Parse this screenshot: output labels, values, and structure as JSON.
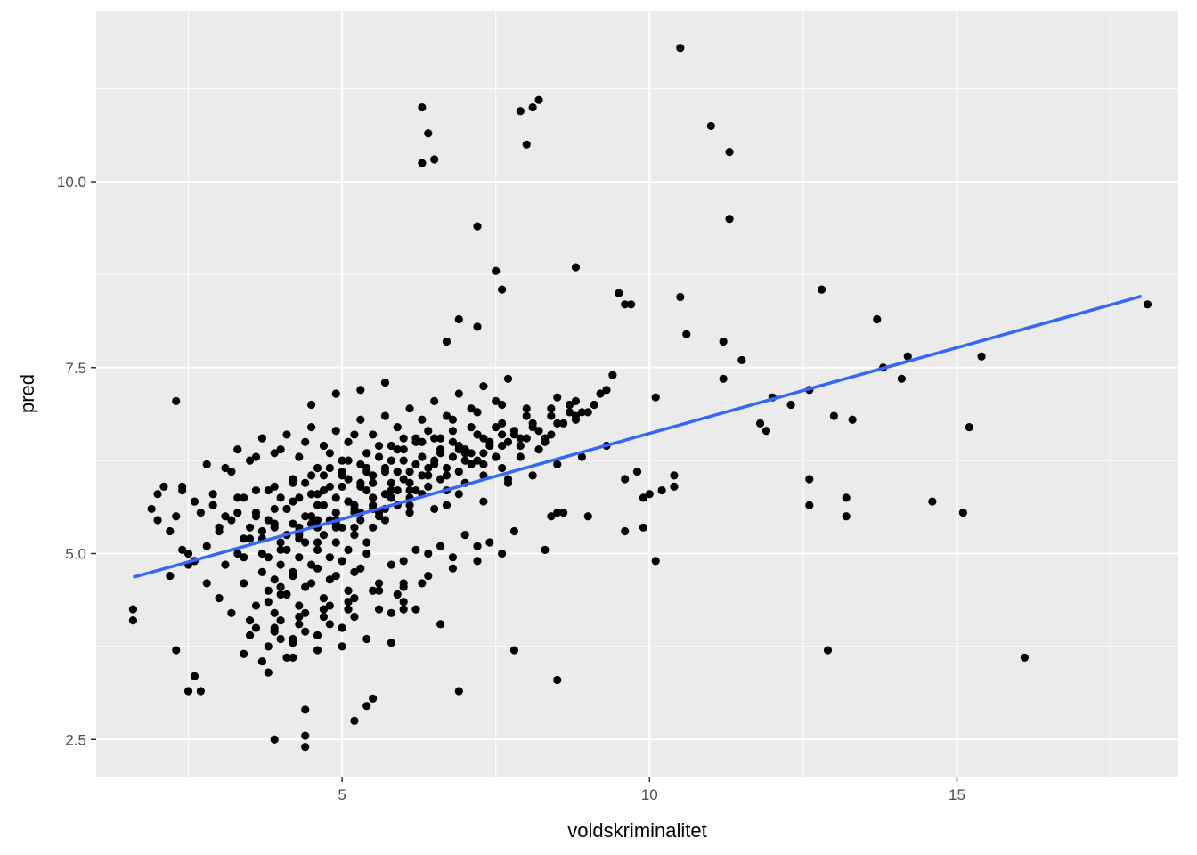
{
  "chart_data": {
    "type": "scatter",
    "title": "",
    "xlabel": "voldskriminalitet",
    "ylabel": "pred",
    "xlim": [
      1.0,
      18.6
    ],
    "ylim": [
      2.0,
      12.3
    ],
    "x_ticks": [
      5,
      10,
      15
    ],
    "x_tick_labels": [
      "5",
      "10",
      "15"
    ],
    "x_minor_ticks": [
      2.5,
      7.5,
      12.5,
      17.5
    ],
    "y_ticks": [
      2.5,
      5.0,
      7.5,
      10.0
    ],
    "y_tick_labels": [
      "2.5",
      "5.0",
      "7.5",
      "10.0"
    ],
    "y_minor_ticks": [
      3.75,
      6.25,
      8.75,
      11.25
    ],
    "grid": true,
    "legend": "none",
    "colors": {
      "panel": "#ebebeb",
      "grid": "#ffffff",
      "points": "#000000",
      "trend": "#3366ff"
    },
    "trend_line": {
      "x": [
        1.6,
        18.0
      ],
      "y": [
        4.68,
        8.46
      ]
    },
    "points": {
      "x": [
        10.5,
        8.2,
        8.1,
        7.9,
        6.3,
        6.4,
        6.5,
        8.0,
        6.3,
        11.0,
        11.3,
        11.3,
        7.2,
        8.8,
        7.5,
        7.6,
        6.9,
        7.2,
        6.7,
        9.5,
        9.6,
        9.7,
        10.5,
        10.6,
        11.2,
        12.8,
        13.7,
        15.4,
        18.1,
        11.2,
        11.5,
        13.8,
        14.1,
        14.2,
        13.0,
        13.3,
        12.0,
        12.3,
        12.6,
        11.8,
        11.9,
        15.2,
        10.1,
        10.4,
        10.4,
        10.2,
        9.9,
        10.0,
        10.1,
        9.9,
        9.6,
        9.0,
        8.6,
        8.3,
        8.4,
        8.5,
        9.4,
        9.3,
        9.1,
        8.9,
        8.7,
        8.5,
        9.8,
        9.6,
        12.6,
        12.6,
        13.2,
        13.2,
        14.6,
        15.1,
        12.9,
        16.1,
        7.8,
        6.9,
        6.6,
        6.2,
        6.0,
        5.8,
        8.5,
        5.2,
        5.4,
        5.5,
        3.8,
        3.9,
        4.4,
        4.4,
        4.4,
        2.5,
        2.7,
        2.6,
        2.3,
        2.3,
        1.6,
        1.6,
        1.9,
        2.0,
        2.2,
        2.4,
        2.5,
        2.6,
        2.8,
        3.0,
        3.2,
        3.3,
        3.4,
        3.5,
        3.6,
        3.7,
        3.8,
        3.9,
        4.0,
        4.1,
        4.2,
        4.3,
        4.4,
        4.5,
        4.6,
        4.7,
        4.8,
        4.9,
        5.0,
        5.1,
        5.2,
        5.3,
        5.4,
        5.5,
        5.6,
        5.7,
        5.8,
        5.9,
        6.0,
        6.1,
        6.2,
        6.3,
        6.4,
        6.5,
        6.6,
        6.7,
        6.8,
        6.9,
        7.0,
        7.1,
        7.2,
        7.3,
        7.4,
        7.5,
        7.6,
        7.7,
        7.8,
        7.9,
        8.0,
        8.1,
        8.2,
        8.3,
        8.4,
        8.6,
        8.8,
        9.0,
        2.1,
        2.4,
        2.6,
        2.9,
        3.1,
        3.3,
        3.5,
        3.7,
        3.9,
        4.1,
        4.3,
        4.5,
        4.7,
        4.9,
        5.1,
        5.3,
        5.5,
        5.7,
        5.9,
        6.1,
        6.3,
        6.5,
        6.7,
        6.9,
        7.1,
        7.3,
        7.5,
        7.7,
        7.9,
        8.1,
        8.3,
        2.2,
        2.5,
        2.8,
        3.1,
        3.4,
        3.7,
        4.0,
        4.3,
        4.6,
        4.9,
        5.2,
        5.5,
        5.8,
        6.1,
        6.4,
        6.7,
        7.0,
        7.3,
        7.6,
        2.3,
        2.7,
        3.0,
        3.3,
        3.6,
        3.9,
        4.2,
        4.5,
        4.8,
        5.1,
        5.4,
        5.7,
        6.0,
        6.3,
        6.6,
        6.9,
        7.2,
        7.5,
        7.8,
        8.1,
        8.4,
        8.7,
        2.0,
        2.4,
        2.8,
        3.2,
        3.6,
        4.0,
        4.4,
        4.8,
        5.2,
        5.6,
        6.0,
        6.4,
        6.8,
        7.2,
        7.6,
        8.0,
        3.0,
        3.4,
        3.8,
        4.2,
        4.6,
        5.0,
        5.4,
        5.8,
        6.2,
        6.6,
        7.0,
        7.4,
        7.8,
        3.2,
        3.6,
        4.0,
        4.4,
        4.8,
        5.2,
        5.6,
        6.0,
        6.4,
        6.8,
        7.2,
        3.5,
        3.9,
        4.3,
        4.7,
        5.1,
        5.5,
        5.9,
        6.3,
        4.0,
        4.4,
        4.8,
        5.2,
        5.6,
        6.0,
        4.2,
        4.6,
        5.0,
        5.4,
        5.8,
        3.3,
        3.7,
        4.1,
        4.5,
        4.9,
        5.3,
        5.7,
        6.1,
        6.5,
        6.9,
        7.3,
        7.7,
        3.1,
        3.5,
        3.9,
        4.3,
        4.7,
        5.1,
        5.5,
        5.9,
        6.3,
        6.7,
        7.1,
        7.5,
        2.9,
        3.4,
        3.8,
        4.2,
        4.6,
        5.0,
        5.4,
        5.8,
        6.2,
        6.6,
        7.0,
        7.4,
        4.5,
        4.9,
        5.3,
        5.7,
        4.1,
        4.5,
        4.9,
        5.3,
        5.7,
        6.1,
        6.5,
        6.9,
        7.3,
        7.7,
        8.1,
        8.5,
        8.9,
        9.3,
        6.8,
        7.2,
        7.6,
        8.0,
        8.4,
        8.8,
        9.2,
        5.6,
        6.0,
        6.4,
        6.8,
        7.2,
        7.6,
        3.6,
        3.9,
        4.2,
        4.5,
        4.8,
        5.1,
        5.4,
        5.7,
        6.0,
        6.3,
        6.6,
        4.0,
        4.3,
        4.6,
        4.9,
        5.2,
        5.5,
        5.8,
        6.1,
        3.8,
        4.1,
        4.4,
        4.7,
        5.0,
        5.3,
        5.6,
        5.9,
        3.7,
        4.0,
        4.3,
        4.6,
        4.9,
        5.2,
        5.5,
        3.9,
        4.2,
        4.5,
        4.8,
        5.1,
        5.4,
        4.6,
        5.0,
        5.4,
        5.8,
        6.2,
        4.4,
        4.7,
        5.0,
        5.3,
        5.6,
        5.9,
        6.2,
        6.5,
        6.8,
        7.1,
        4.3,
        4.6,
        4.9,
        5.2,
        5.5,
        5.8,
        6.1,
        6.4,
        6.7,
        7.0,
        7.3,
        7.6,
        7.9,
        8.2,
        8.5,
        8.8,
        4.0,
        3.8,
        4.1,
        4.5,
        4.9,
        5.3,
        3.5,
        3.9,
        4.3,
        4.7,
        5.1,
        3.6,
        4.0,
        4.4,
        4.8,
        5.2,
        5.6,
        6.0,
        3.9,
        4.3,
        4.7,
        5.1,
        4.2,
        4.6,
        5.0,
        3.4,
        3.8,
        4.2,
        3.7,
        4.1
      ],
      "y": [
        11.8,
        11.1,
        11.0,
        10.95,
        11.0,
        10.65,
        10.3,
        10.5,
        10.25,
        10.75,
        10.4,
        9.5,
        9.4,
        8.85,
        8.8,
        8.55,
        8.15,
        8.05,
        7.85,
        8.5,
        8.35,
        8.35,
        8.45,
        7.95,
        7.85,
        8.55,
        8.15,
        7.65,
        8.35,
        7.35,
        7.6,
        7.5,
        7.35,
        7.65,
        6.85,
        6.8,
        7.1,
        7.0,
        7.2,
        6.75,
        6.65,
        6.7,
        7.1,
        6.05,
        5.9,
        5.85,
        5.75,
        5.8,
        4.9,
        5.35,
        5.3,
        5.5,
        5.55,
        5.05,
        5.5,
        5.55,
        7.4,
        7.2,
        7.0,
        6.9,
        7.0,
        7.1,
        6.1,
        6.0,
        6.0,
        5.65,
        5.75,
        5.5,
        5.7,
        5.55,
        3.7,
        3.6,
        3.7,
        3.15,
        4.05,
        4.25,
        4.25,
        4.2,
        3.3,
        2.75,
        2.95,
        3.05,
        3.4,
        2.5,
        2.9,
        2.55,
        2.4,
        3.15,
        3.15,
        3.35,
        3.7,
        7.05,
        4.25,
        4.1,
        5.6,
        5.45,
        5.3,
        5.05,
        4.85,
        4.9,
        5.1,
        5.3,
        5.45,
        5.0,
        5.2,
        5.35,
        5.55,
        5.0,
        5.45,
        5.35,
        5.75,
        5.6,
        5.4,
        5.75,
        5.5,
        5.8,
        5.65,
        5.85,
        5.45,
        5.75,
        5.9,
        5.7,
        5.6,
        5.95,
        5.85,
        6.05,
        5.5,
        5.8,
        5.95,
        6.1,
        6.0,
        5.75,
        5.85,
        6.05,
        6.15,
        6.2,
        6.0,
        5.85,
        6.3,
        6.4,
        6.35,
        6.2,
        6.25,
        6.55,
        6.45,
        6.3,
        6.6,
        6.5,
        6.6,
        6.45,
        6.55,
        6.7,
        6.4,
        6.5,
        6.6,
        6.75,
        6.8,
        6.9,
        5.9,
        5.85,
        5.7,
        5.8,
        5.5,
        5.55,
        5.2,
        5.3,
        5.4,
        5.6,
        5.2,
        5.5,
        5.65,
        5.4,
        5.7,
        5.9,
        5.95,
        5.6,
        5.85,
        6.1,
        5.8,
        6.25,
        6.05,
        6.1,
        6.35,
        6.2,
        6.3,
        6.0,
        6.3,
        6.05,
        6.55,
        4.7,
        5.0,
        4.6,
        4.85,
        4.95,
        5.2,
        5.05,
        5.3,
        5.15,
        5.45,
        5.35,
        5.6,
        5.75,
        5.55,
        5.9,
        5.65,
        5.95,
        6.05,
        6.15,
        5.5,
        5.55,
        5.35,
        5.75,
        5.85,
        5.9,
        6.0,
        6.05,
        6.15,
        6.25,
        6.35,
        6.1,
        6.4,
        6.5,
        6.55,
        6.45,
        6.6,
        6.7,
        6.65,
        6.75,
        6.85,
        6.9,
        5.8,
        5.9,
        6.2,
        6.1,
        6.3,
        6.4,
        6.5,
        6.35,
        6.6,
        6.45,
        6.55,
        6.65,
        6.8,
        6.9,
        7.0,
        6.95,
        4.4,
        4.6,
        4.5,
        4.7,
        4.8,
        4.9,
        5.0,
        4.85,
        5.05,
        5.1,
        5.25,
        5.15,
        5.3,
        4.2,
        4.3,
        4.45,
        4.55,
        4.65,
        4.75,
        4.6,
        4.9,
        5.0,
        4.95,
        5.1,
        3.9,
        4.0,
        4.15,
        4.25,
        4.35,
        4.5,
        4.45,
        4.6,
        3.85,
        3.95,
        4.05,
        4.15,
        4.25,
        4.35,
        3.6,
        3.7,
        3.75,
        3.85,
        3.8,
        6.4,
        6.55,
        6.6,
        6.7,
        6.65,
        6.8,
        6.85,
        6.95,
        7.05,
        7.15,
        7.25,
        7.35,
        6.15,
        6.25,
        6.35,
        6.3,
        6.45,
        6.5,
        6.6,
        6.7,
        6.8,
        6.85,
        6.95,
        7.05,
        5.65,
        5.75,
        5.85,
        5.95,
        5.8,
        6.05,
        6.15,
        6.25,
        6.2,
        6.35,
        6.4,
        6.5,
        7.0,
        7.15,
        7.2,
        7.3,
        5.25,
        5.4,
        5.35,
        5.55,
        5.45,
        5.65,
        5.6,
        5.8,
        5.7,
        5.95,
        6.05,
        6.2,
        6.3,
        6.45,
        6.5,
        6.6,
        6.75,
        6.85,
        6.95,
        7.05,
        7.15,
        4.5,
        4.55,
        4.7,
        4.8,
        4.9,
        5.0,
        5.5,
        5.6,
        5.7,
        5.8,
        5.9,
        6.0,
        6.1,
        6.15,
        6.25,
        6.3,
        6.4,
        5.15,
        5.25,
        5.35,
        5.45,
        5.55,
        5.65,
        5.75,
        5.85,
        4.95,
        5.05,
        5.15,
        5.25,
        5.35,
        5.45,
        5.55,
        5.65,
        4.75,
        4.85,
        4.95,
        5.05,
        5.15,
        5.25,
        5.35,
        4.65,
        4.75,
        4.85,
        4.95,
        5.05,
        5.15,
        6.15,
        6.25,
        6.35,
        6.45,
        6.55,
        5.95,
        6.05,
        6.1,
        6.2,
        6.3,
        6.4,
        6.5,
        6.55,
        6.65,
        6.7,
        5.35,
        5.45,
        5.55,
        5.65,
        5.75,
        5.85,
        5.95,
        6.05,
        6.15,
        6.25,
        6.35,
        6.45,
        6.55,
        6.65,
        6.75,
        6.85,
        4.55,
        4.35,
        4.45,
        4.6,
        4.7,
        4.8,
        4.1,
        4.2,
        4.3,
        4.4,
        4.5,
        4.0,
        4.1,
        4.2,
        4.3,
        4.4,
        4.5,
        4.6,
        3.95,
        4.05,
        4.15,
        4.25,
        3.8,
        3.9,
        4.0,
        3.65,
        3.75,
        3.85,
        3.55,
        3.6
      ]
    }
  }
}
